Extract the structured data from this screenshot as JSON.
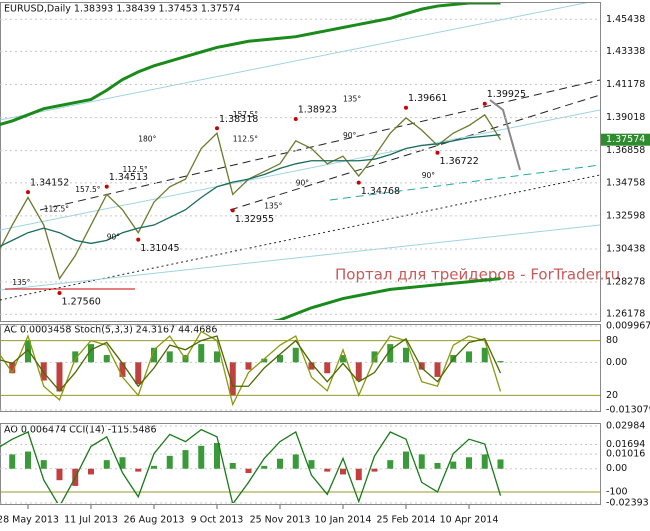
{
  "chart_data": [
    {
      "type": "line",
      "title": "EURUSD,Daily  1.38393 1.38439 1.37453 1.37574",
      "watermark": "Портал для трейдеров - ForTrader.ru",
      "categories": [
        null,
        null,
        "28 May 2013",
        null,
        null,
        null,
        "11 Jul 2013",
        null,
        null,
        null,
        "26 Aug 2013",
        null,
        null,
        null,
        "9 Oct 2013",
        null,
        null,
        null,
        "25 Nov 2013",
        null,
        null,
        null,
        "10 Jan 2014",
        null,
        null,
        null,
        "25 Feb 2014",
        null,
        null,
        null,
        "10 Apr 2014",
        null,
        null
      ],
      "ylim": [
        1.258,
        1.465
      ],
      "yticks": [
        1.26178,
        1.28278,
        1.30438,
        1.32598,
        1.34758,
        1.36858,
        1.39018,
        1.41178,
        1.43338,
        1.45438
      ],
      "grid": true,
      "last_price": 1.37574,
      "series": [
        {
          "color": "#6b7b2e",
          "type": "line",
          "values": [
            1.3,
            1.32,
            1.338,
            1.32,
            1.285,
            1.3,
            1.32,
            1.34,
            1.33,
            1.315,
            1.335,
            1.345,
            1.35,
            1.37,
            1.38,
            1.34,
            1.35,
            1.355,
            1.36,
            1.375,
            1.37,
            1.36,
            1.365,
            1.352,
            1.365,
            1.38,
            1.39,
            1.382,
            1.372,
            1.38,
            1.385,
            1.392,
            1.37574
          ]
        },
        {
          "color": "#1a6b5a",
          "type": "line",
          "values": [
            1.305,
            1.31,
            1.315,
            1.318,
            1.315,
            1.31,
            1.308,
            1.31,
            1.315,
            1.318,
            1.32,
            1.325,
            1.33,
            1.338,
            1.345,
            1.348,
            1.35,
            1.353,
            1.357,
            1.36,
            1.362,
            1.362,
            1.362,
            1.362,
            1.363,
            1.366,
            1.37,
            1.372,
            1.373,
            1.375,
            1.377,
            1.378,
            1.379
          ]
        },
        {
          "color": "#1a8a1a",
          "type": "line",
          "values": [
            1.385,
            1.388,
            1.392,
            1.396,
            1.398,
            1.4,
            1.402,
            1.408,
            1.415,
            1.42,
            1.424,
            1.427,
            1.43,
            1.433,
            1.436,
            1.438,
            1.44,
            1.441,
            1.442,
            1.443,
            1.445,
            1.447,
            1.449,
            1.451,
            1.453,
            1.455,
            1.458,
            1.461,
            1.463,
            1.464,
            1.465,
            1.465,
            1.465
          ]
        },
        {
          "color": "#1a8a1a",
          "type": "line",
          "values": [
            null,
            null,
            null,
            null,
            null,
            null,
            null,
            null,
            null,
            null,
            null,
            null,
            null,
            null,
            null,
            null,
            null,
            1.256,
            1.258,
            1.262,
            1.266,
            1.269,
            1.272,
            1.274,
            1.276,
            1.278,
            1.279,
            1.28,
            1.281,
            1.282,
            1.283,
            1.284,
            1.285
          ]
        }
      ],
      "annotations": [
        {
          "x": 2,
          "y": 1.34152,
          "label": "1.34152"
        },
        {
          "x": 4,
          "y": 1.2756,
          "label": "1.27560"
        },
        {
          "x": 7,
          "y": 1.34513,
          "label": "1.34513"
        },
        {
          "x": 9,
          "y": 1.31045,
          "label": "1.31045"
        },
        {
          "x": 14,
          "y": 1.38318,
          "label": "1.38318"
        },
        {
          "x": 15,
          "y": 1.32955,
          "label": "1.32955"
        },
        {
          "x": 19,
          "y": 1.38923,
          "label": "1.38923"
        },
        {
          "x": 23,
          "y": 1.34768,
          "label": "1.34768"
        },
        {
          "x": 26,
          "y": 1.39661,
          "label": "1.39661"
        },
        {
          "x": 28,
          "y": 1.36722,
          "label": "1.36722"
        },
        {
          "x": 31,
          "y": 1.39925,
          "label": "1.39925"
        }
      ],
      "angle_labels": [
        {
          "x": 1,
          "y": 1.282,
          "label": "135°"
        },
        {
          "x": 3,
          "y": 1.33,
          "label": "112.5°"
        },
        {
          "x": 5,
          "y": 1.343,
          "label": "157.5°"
        },
        {
          "x": 7,
          "y": 1.312,
          "label": "90°"
        },
        {
          "x": 8,
          "y": 1.356,
          "label": "112.5°"
        },
        {
          "x": 9,
          "y": 1.376,
          "label": "180°"
        },
        {
          "x": 15,
          "y": 1.392,
          "label": "157.5°"
        },
        {
          "x": 15,
          "y": 1.376,
          "label": "112.5°"
        },
        {
          "x": 17,
          "y": 1.332,
          "label": "135°"
        },
        {
          "x": 19,
          "y": 1.347,
          "label": "90°"
        },
        {
          "x": 22,
          "y": 1.402,
          "label": "135°"
        },
        {
          "x": 22,
          "y": 1.378,
          "label": "90°"
        },
        {
          "x": 27,
          "y": 1.352,
          "label": "90°"
        }
      ]
    },
    {
      "type": "oscillator",
      "title": "AC 0.0003458  Stoch(5,3,3) 24.3167 44.4686",
      "ylim": [
        -0.013079,
        0.009967
      ],
      "yticks": [
        {
          "value": 0.009967,
          "label": "0.009967"
        },
        {
          "value": 0,
          "label": "0.00"
        },
        {
          "value": -0.013079,
          "label": "-0.013079"
        }
      ],
      "y2lim": [
        4,
        96
      ],
      "y2ticks": [
        80,
        20
      ],
      "series": [
        {
          "color": "#3a9a3a",
          "type": "bar",
          "values": [
            0.004,
            -0.003,
            0.006,
            -0.005,
            -0.008,
            0.003,
            0.005,
            0.002,
            -0.004,
            -0.006,
            0.004,
            0.003,
            0.002,
            0.005,
            0.003,
            -0.009,
            -0.002,
            0.001,
            0.002,
            0.004,
            -0.002,
            -0.003,
            0.002,
            -0.005,
            0.003,
            0.005,
            0.004,
            -0.002,
            -0.004,
            0.002,
            0.003,
            0.004,
            0.0003458
          ]
        },
        {
          "color": "#8a9a10",
          "type": "line",
          "axis": "y2",
          "values": [
            70,
            45,
            85,
            30,
            15,
            60,
            80,
            75,
            40,
            20,
            70,
            85,
            60,
            90,
            80,
            10,
            45,
            60,
            75,
            85,
            40,
            25,
            70,
            20,
            60,
            85,
            80,
            35,
            30,
            75,
            85,
            80,
            24.3167
          ]
        },
        {
          "color": "#4a6a00",
          "type": "line",
          "axis": "y2",
          "values": [
            60,
            55,
            70,
            45,
            25,
            45,
            70,
            78,
            55,
            30,
            50,
            75,
            70,
            80,
            85,
            30,
            30,
            50,
            65,
            80,
            55,
            35,
            55,
            35,
            45,
            70,
            82,
            50,
            35,
            60,
            78,
            82,
            44.4686
          ]
        }
      ]
    },
    {
      "type": "oscillator",
      "title": "AO 0.006474  CCI(14) -115.5486",
      "ylim": [
        -0.02393,
        0.02984
      ],
      "yticks": [
        0.02984,
        0.01694,
        0.01016,
        {
          "value": 0,
          "label": "0.00"
        },
        -0.02393
      ],
      "y2lim": [
        -146,
        175
      ],
      "y2ticks": [
        -100
      ],
      "series": [
        {
          "color": "#3a9a3a",
          "type": "bar",
          "values": [
            0.005,
            0.01,
            0.012,
            0.006,
            -0.008,
            -0.012,
            -0.004,
            0.006,
            0.008,
            -0.002,
            0.002,
            0.009,
            0.013,
            0.016,
            0.018,
            0.004,
            -0.003,
            0.002,
            0.007,
            0.01,
            0.006,
            -0.002,
            -0.004,
            -0.008,
            -0.002,
            0.006,
            0.012,
            0.01,
            0.004,
            0.005,
            0.008,
            0.01,
            0.006474
          ]
        },
        {
          "color": "#1a7a1a",
          "type": "line",
          "axis": "y2",
          "values": [
            80,
            120,
            150,
            -50,
            -160,
            -40,
            90,
            130,
            -20,
            -120,
            60,
            140,
            110,
            160,
            130,
            -150,
            -60,
            40,
            110,
            150,
            -30,
            -110,
            40,
            -140,
            50,
            150,
            120,
            -60,
            -100,
            60,
            120,
            100,
            -115.5486
          ]
        }
      ]
    }
  ]
}
